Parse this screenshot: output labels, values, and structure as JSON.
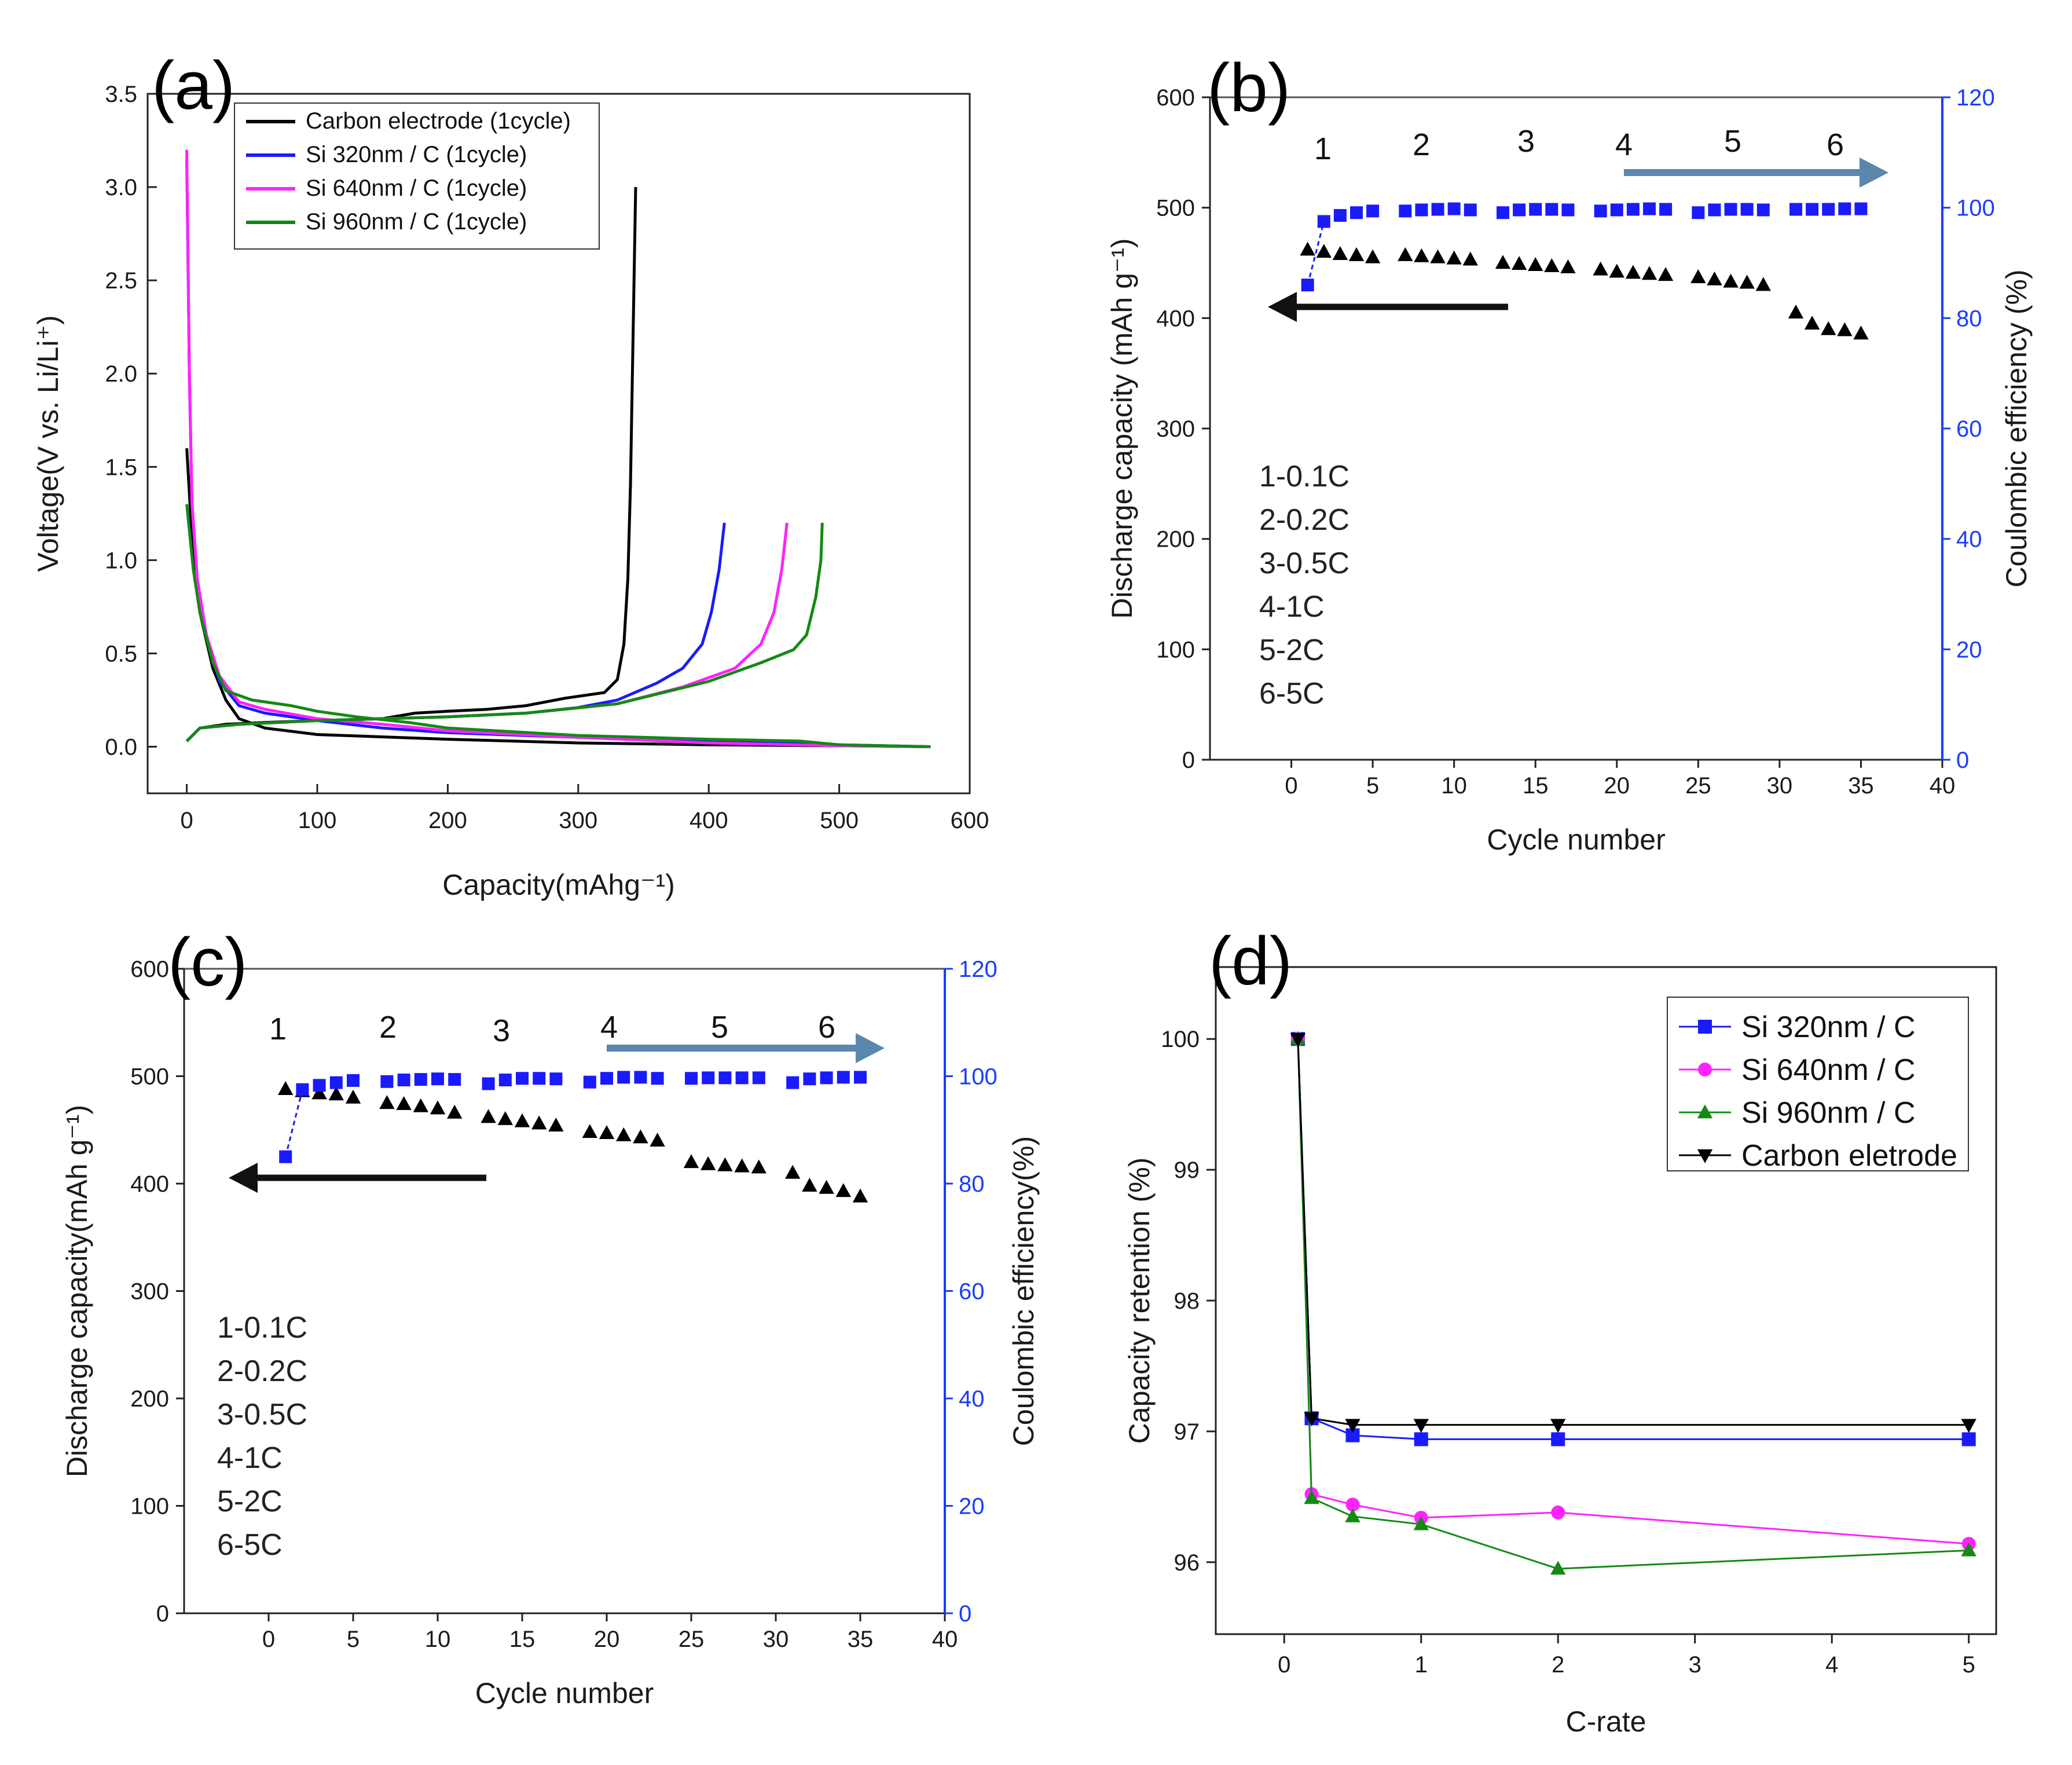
{
  "chart_data": [
    {
      "id": "a",
      "panel_label": "(a)",
      "type": "line",
      "xlabel": "Capacity(mAhg⁻¹)",
      "ylabel": "Voltage(V vs. Li/Li⁺)",
      "xlim": [
        -30,
        600
      ],
      "ylim": [
        -0.25,
        3.5
      ],
      "xticks": [
        0,
        100,
        200,
        300,
        400,
        500,
        600
      ],
      "yticks": [
        0.0,
        0.5,
        1.0,
        1.5,
        2.0,
        2.5,
        3.0,
        3.5
      ],
      "yticklabels": [
        "0.0",
        "0.5",
        "1.0",
        "1.5",
        "2.0",
        "2.5",
        "3.0",
        "3.5"
      ],
      "series": [
        {
          "name": "Carbon electrode (1cycle)",
          "color": "#000000",
          "discharge": [
            [
              0,
              1.6
            ],
            [
              5,
              1.0
            ],
            [
              10,
              0.72
            ],
            [
              20,
              0.42
            ],
            [
              30,
              0.25
            ],
            [
              40,
              0.15
            ],
            [
              60,
              0.1
            ],
            [
              100,
              0.065
            ],
            [
              200,
              0.04
            ],
            [
              300,
              0.02
            ],
            [
              400,
              0.01
            ],
            [
              500,
              0.005
            ],
            [
              570,
              0.0
            ]
          ],
          "charge": [
            [
              0,
              0.03
            ],
            [
              10,
              0.1
            ],
            [
              30,
              0.12
            ],
            [
              60,
              0.13
            ],
            [
              100,
              0.14
            ],
            [
              150,
              0.15
            ],
            [
              175,
              0.18
            ],
            [
              200,
              0.19
            ],
            [
              230,
              0.2
            ],
            [
              260,
              0.22
            ],
            [
              290,
              0.26
            ],
            [
              320,
              0.29
            ],
            [
              330,
              0.36
            ],
            [
              335,
              0.55
            ],
            [
              338,
              0.9
            ],
            [
              340,
              1.4
            ],
            [
              342,
              2.2
            ],
            [
              344,
              3.0
            ]
          ]
        },
        {
          "name": "Si 320nm / C (1cycle)",
          "color": "#1a1aff",
          "discharge": [
            [
              0,
              3.15
            ],
            [
              2,
              2.0
            ],
            [
              4,
              1.3
            ],
            [
              8,
              0.9
            ],
            [
              15,
              0.6
            ],
            [
              25,
              0.35
            ],
            [
              40,
              0.22
            ],
            [
              60,
              0.18
            ],
            [
              100,
              0.14
            ],
            [
              150,
              0.1
            ],
            [
              200,
              0.075
            ],
            [
              300,
              0.05
            ],
            [
              400,
              0.03
            ],
            [
              500,
              0.01
            ],
            [
              570,
              0.0
            ]
          ],
          "charge": [
            [
              0,
              0.03
            ],
            [
              10,
              0.1
            ],
            [
              40,
              0.12
            ],
            [
              100,
              0.14
            ],
            [
              200,
              0.16
            ],
            [
              260,
              0.18
            ],
            [
              300,
              0.21
            ],
            [
              330,
              0.25
            ],
            [
              360,
              0.34
            ],
            [
              380,
              0.42
            ],
            [
              395,
              0.55
            ],
            [
              402,
              0.72
            ],
            [
              408,
              0.95
            ],
            [
              412,
              1.2
            ]
          ]
        },
        {
          "name": "Si 640nm / C (1cycle)",
          "color": "#ff22ff",
          "discharge": [
            [
              0,
              3.2
            ],
            [
              2,
              2.0
            ],
            [
              4,
              1.3
            ],
            [
              8,
              0.9
            ],
            [
              15,
              0.6
            ],
            [
              25,
              0.38
            ],
            [
              40,
              0.24
            ],
            [
              60,
              0.2
            ],
            [
              100,
              0.15
            ],
            [
              150,
              0.12
            ],
            [
              200,
              0.085
            ],
            [
              300,
              0.05
            ],
            [
              400,
              0.02
            ],
            [
              500,
              0.005
            ],
            [
              570,
              0.0
            ]
          ],
          "charge": [
            [
              0,
              0.03
            ],
            [
              10,
              0.1
            ],
            [
              40,
              0.12
            ],
            [
              100,
              0.14
            ],
            [
              200,
              0.16
            ],
            [
              260,
              0.18
            ],
            [
              330,
              0.23
            ],
            [
              380,
              0.32
            ],
            [
              420,
              0.42
            ],
            [
              440,
              0.55
            ],
            [
              450,
              0.72
            ],
            [
              456,
              0.95
            ],
            [
              460,
              1.2
            ]
          ]
        },
        {
          "name": "Si 960nm / C (1cycle)",
          "color": "#138a13",
          "discharge": [
            [
              0,
              1.3
            ],
            [
              5,
              0.95
            ],
            [
              10,
              0.72
            ],
            [
              20,
              0.45
            ],
            [
              30,
              0.3
            ],
            [
              50,
              0.25
            ],
            [
              80,
              0.22
            ],
            [
              100,
              0.19
            ],
            [
              130,
              0.16
            ],
            [
              170,
              0.13
            ],
            [
              200,
              0.1
            ],
            [
              300,
              0.06
            ],
            [
              400,
              0.04
            ],
            [
              470,
              0.03
            ],
            [
              500,
              0.01
            ],
            [
              570,
              0.0
            ]
          ],
          "charge": [
            [
              0,
              0.03
            ],
            [
              10,
              0.1
            ],
            [
              40,
              0.12
            ],
            [
              100,
              0.14
            ],
            [
              200,
              0.16
            ],
            [
              260,
              0.18
            ],
            [
              330,
              0.23
            ],
            [
              400,
              0.35
            ],
            [
              440,
              0.45
            ],
            [
              465,
              0.52
            ],
            [
              475,
              0.6
            ],
            [
              482,
              0.8
            ],
            [
              486,
              1.0
            ],
            [
              487,
              1.2
            ]
          ]
        }
      ],
      "legend": "top"
    },
    {
      "id": "b",
      "panel_label": "(b)",
      "type": "scatter",
      "xlabel": "Cycle number",
      "ylabel": "Discharge capacity (mAh g⁻¹)",
      "y2label": "Coulombic efficiency (%)",
      "xlim": [
        -5,
        40
      ],
      "ylim": [
        0,
        600
      ],
      "y2lim": [
        0,
        120
      ],
      "xticks": [
        0,
        5,
        10,
        15,
        20,
        25,
        30,
        35,
        40
      ],
      "yticks": [
        0,
        100,
        200,
        300,
        400,
        500,
        600
      ],
      "y2ticks": [
        0,
        20,
        40,
        60,
        80,
        100,
        120
      ],
      "series": [
        {
          "name": "Discharge capacity",
          "axis": "left",
          "marker": "triangle",
          "color": "#000000",
          "x": [
            1,
            2,
            3,
            4,
            5,
            7,
            8,
            9,
            10,
            11,
            13,
            14,
            15,
            16,
            17,
            19,
            20,
            21,
            22,
            23,
            25,
            26,
            27,
            28,
            29,
            31,
            32,
            33,
            34,
            35
          ],
          "y": [
            462,
            460,
            458,
            457,
            455,
            457,
            456,
            455,
            454,
            453,
            450,
            449,
            448,
            447,
            446,
            444,
            442,
            441,
            440,
            439,
            437,
            435,
            433,
            432,
            430,
            405,
            395,
            390,
            389,
            386
          ]
        },
        {
          "name": "Coulombic efficiency",
          "axis": "right",
          "marker": "square",
          "color": "#1a1aff",
          "x": [
            1,
            2,
            3,
            4,
            5,
            7,
            8,
            9,
            10,
            11,
            13,
            14,
            15,
            16,
            17,
            19,
            20,
            21,
            22,
            23,
            25,
            26,
            27,
            28,
            29,
            31,
            32,
            33,
            34,
            35
          ],
          "y": [
            86,
            97.5,
            98.6,
            99.1,
            99.4,
            99.4,
            99.6,
            99.7,
            99.8,
            99.6,
            99.1,
            99.6,
            99.7,
            99.7,
            99.6,
            99.4,
            99.6,
            99.7,
            99.8,
            99.7,
            99.1,
            99.6,
            99.7,
            99.7,
            99.6,
            99.7,
            99.7,
            99.7,
            99.8,
            99.8
          ]
        }
      ],
      "rate_numbers": [
        "1",
        "2",
        "3",
        "4",
        "5",
        "6"
      ],
      "legend_text": [
        "1-0.1C",
        "2-0.2C",
        "3-0.5C",
        "4-1C",
        "5-2C",
        "6-5C"
      ]
    },
    {
      "id": "c",
      "panel_label": "(c)",
      "type": "scatter",
      "xlabel": "Cycle number",
      "ylabel": "Discharge capacity(mAh g⁻¹)",
      "y2label": "Coulombic efficiency(%)",
      "xlim": [
        -5,
        40
      ],
      "ylim": [
        0,
        600
      ],
      "y2lim": [
        0,
        120
      ],
      "xticks": [
        0,
        5,
        10,
        15,
        20,
        25,
        30,
        35,
        40
      ],
      "yticks": [
        0,
        100,
        200,
        300,
        400,
        500,
        600
      ],
      "y2ticks": [
        0,
        20,
        40,
        60,
        80,
        100,
        120
      ],
      "series": [
        {
          "name": "Discharge capacity",
          "axis": "left",
          "marker": "triangle",
          "color": "#000000",
          "x": [
            1,
            2,
            3,
            4,
            5,
            7,
            8,
            9,
            10,
            11,
            13,
            14,
            15,
            16,
            17,
            19,
            20,
            21,
            22,
            23,
            25,
            26,
            27,
            28,
            29,
            31,
            32,
            33,
            34,
            35
          ],
          "y": [
            488,
            486,
            484,
            483,
            480,
            475,
            474,
            472,
            470,
            466,
            462,
            460,
            458,
            456,
            454,
            448,
            447,
            445,
            443,
            440,
            420,
            418,
            417,
            416,
            415,
            410,
            398,
            396,
            393,
            388
          ]
        },
        {
          "name": "Coulombic efficiency",
          "axis": "right",
          "marker": "square",
          "color": "#1a1aff",
          "x": [
            1,
            2,
            3,
            4,
            5,
            7,
            8,
            9,
            10,
            11,
            13,
            14,
            15,
            16,
            17,
            19,
            20,
            21,
            22,
            23,
            25,
            26,
            27,
            28,
            29,
            31,
            32,
            33,
            34,
            35
          ],
          "y": [
            85,
            97.5,
            98.3,
            98.8,
            99.2,
            99.0,
            99.3,
            99.4,
            99.5,
            99.4,
            98.6,
            99.3,
            99.6,
            99.6,
            99.5,
            98.9,
            99.6,
            99.8,
            99.8,
            99.6,
            99.6,
            99.7,
            99.7,
            99.7,
            99.7,
            98.8,
            99.5,
            99.7,
            99.8,
            99.8
          ]
        }
      ],
      "rate_numbers": [
        "1",
        "2",
        "3",
        "4",
        "5",
        "6"
      ],
      "legend_text": [
        "1-0.1C",
        "2-0.2C",
        "3-0.5C",
        "4-1C",
        "5-2C",
        "6-5C"
      ]
    },
    {
      "id": "d",
      "panel_label": "(d)",
      "type": "line",
      "xlabel": "C-rate",
      "ylabel": "Capacity retention (%)",
      "xlim": [
        -0.5,
        5.2
      ],
      "ylim": [
        95.45,
        100.55
      ],
      "xticks": [
        0,
        1,
        2,
        3,
        4,
        5
      ],
      "yticks": [
        96,
        97,
        98,
        99,
        100
      ],
      "categories_x": [
        0.1,
        0.2,
        0.5,
        1,
        2,
        5
      ],
      "series": [
        {
          "name": "Si 320nm / C",
          "marker": "square",
          "color": "#1a1aff",
          "values": [
            100,
            97.1,
            96.97,
            96.94,
            96.94,
            96.94
          ]
        },
        {
          "name": "Si 640nm / C",
          "marker": "circle",
          "color": "#ff22ff",
          "values": [
            100,
            96.52,
            96.44,
            96.34,
            96.38,
            96.14
          ]
        },
        {
          "name": "Si 960nm / C",
          "marker": "triangle",
          "color": "#138a13",
          "values": [
            100,
            96.49,
            96.35,
            96.29,
            95.95,
            96.09
          ]
        },
        {
          "name": "Carbon eletrode",
          "marker": "triangle-down",
          "color": "#000000",
          "values": [
            100,
            97.1,
            97.05,
            97.05,
            97.05,
            97.05
          ]
        }
      ],
      "legend": "top-right"
    }
  ]
}
